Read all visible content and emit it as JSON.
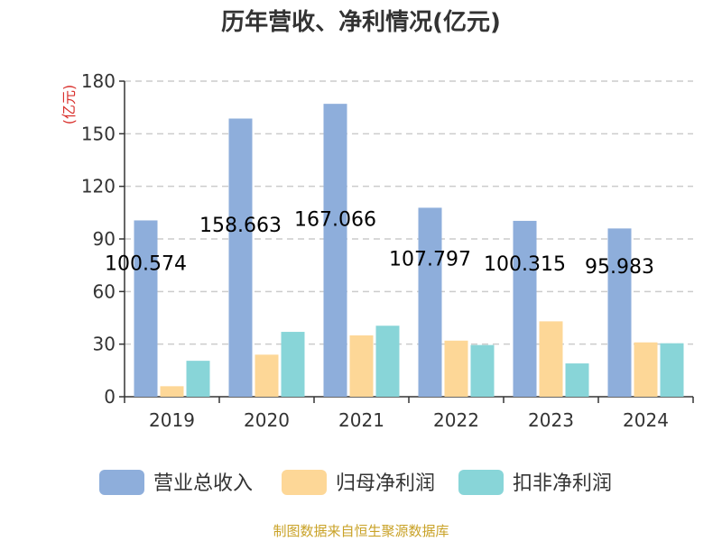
{
  "chart_data": {
    "type": "bar",
    "title": "历年营收、净利情况(亿元)",
    "unit_label": "(亿元)",
    "categories": [
      "2019",
      "2020",
      "2021",
      "2022",
      "2023",
      "2024"
    ],
    "ylim": [
      0,
      180
    ],
    "yticks": [
      "0",
      "30",
      "60",
      "90",
      "120",
      "150",
      "180"
    ],
    "grid": true,
    "legend_position": "bottom",
    "series": [
      {
        "name": "营业总收入",
        "color": "#8eaedb",
        "values": [
          100.574,
          158.663,
          167.066,
          107.797,
          100.315,
          95.983
        ],
        "labels": [
          "100.574",
          "158.663",
          "167.066",
          "107.797",
          "100.315",
          "95.983"
        ]
      },
      {
        "name": "归母净利润",
        "color": "#fdd797",
        "values": [
          6,
          24,
          35,
          32,
          43,
          31
        ]
      },
      {
        "name": "扣非净利润",
        "color": "#88d5d8",
        "values": [
          20.5,
          37,
          40.5,
          29.5,
          19,
          30.5
        ]
      }
    ]
  },
  "footer": {
    "source": "制图数据来自恒生聚源数据库"
  }
}
